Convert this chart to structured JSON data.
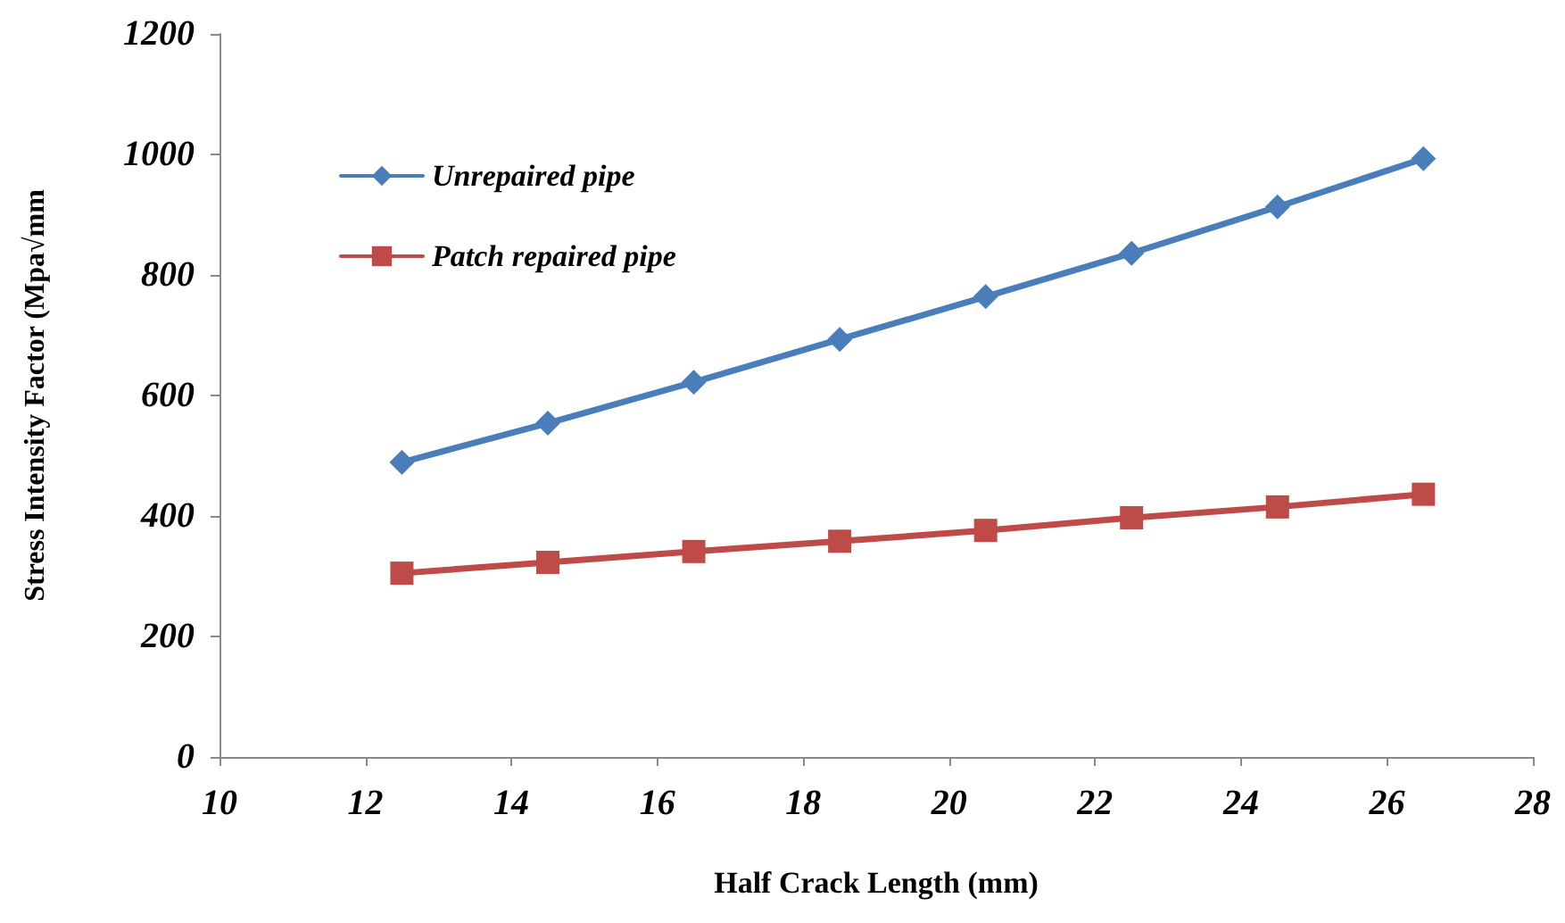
{
  "chart_data": {
    "type": "line",
    "xlabel": "Half Crack Length (mm)",
    "ylabel": "Stress Intensity Factor (Mpa√mm",
    "x": [
      12.5,
      14.5,
      16.5,
      18.5,
      20.5,
      22.5,
      24.5,
      26.5
    ],
    "series": [
      {
        "name": "Unrepaired pipe",
        "color": "#4a7ebb",
        "marker": "diamond",
        "values": [
          489,
          554,
          622,
          693,
          764,
          836,
          913,
          993
        ]
      },
      {
        "name": "Patch repaired pipe",
        "color": "#be4b48",
        "marker": "square",
        "values": [
          305,
          323,
          341,
          358,
          376,
          397,
          415,
          436
        ]
      }
    ],
    "xlim": [
      10,
      28
    ],
    "xticks": [
      10,
      12,
      14,
      16,
      18,
      20,
      22,
      24,
      26,
      28
    ],
    "ylim": [
      0,
      1200
    ],
    "yticks": [
      0,
      200,
      400,
      600,
      800,
      1000,
      1200
    ],
    "grid": false,
    "legend": "top left",
    "line_style": "solid"
  }
}
